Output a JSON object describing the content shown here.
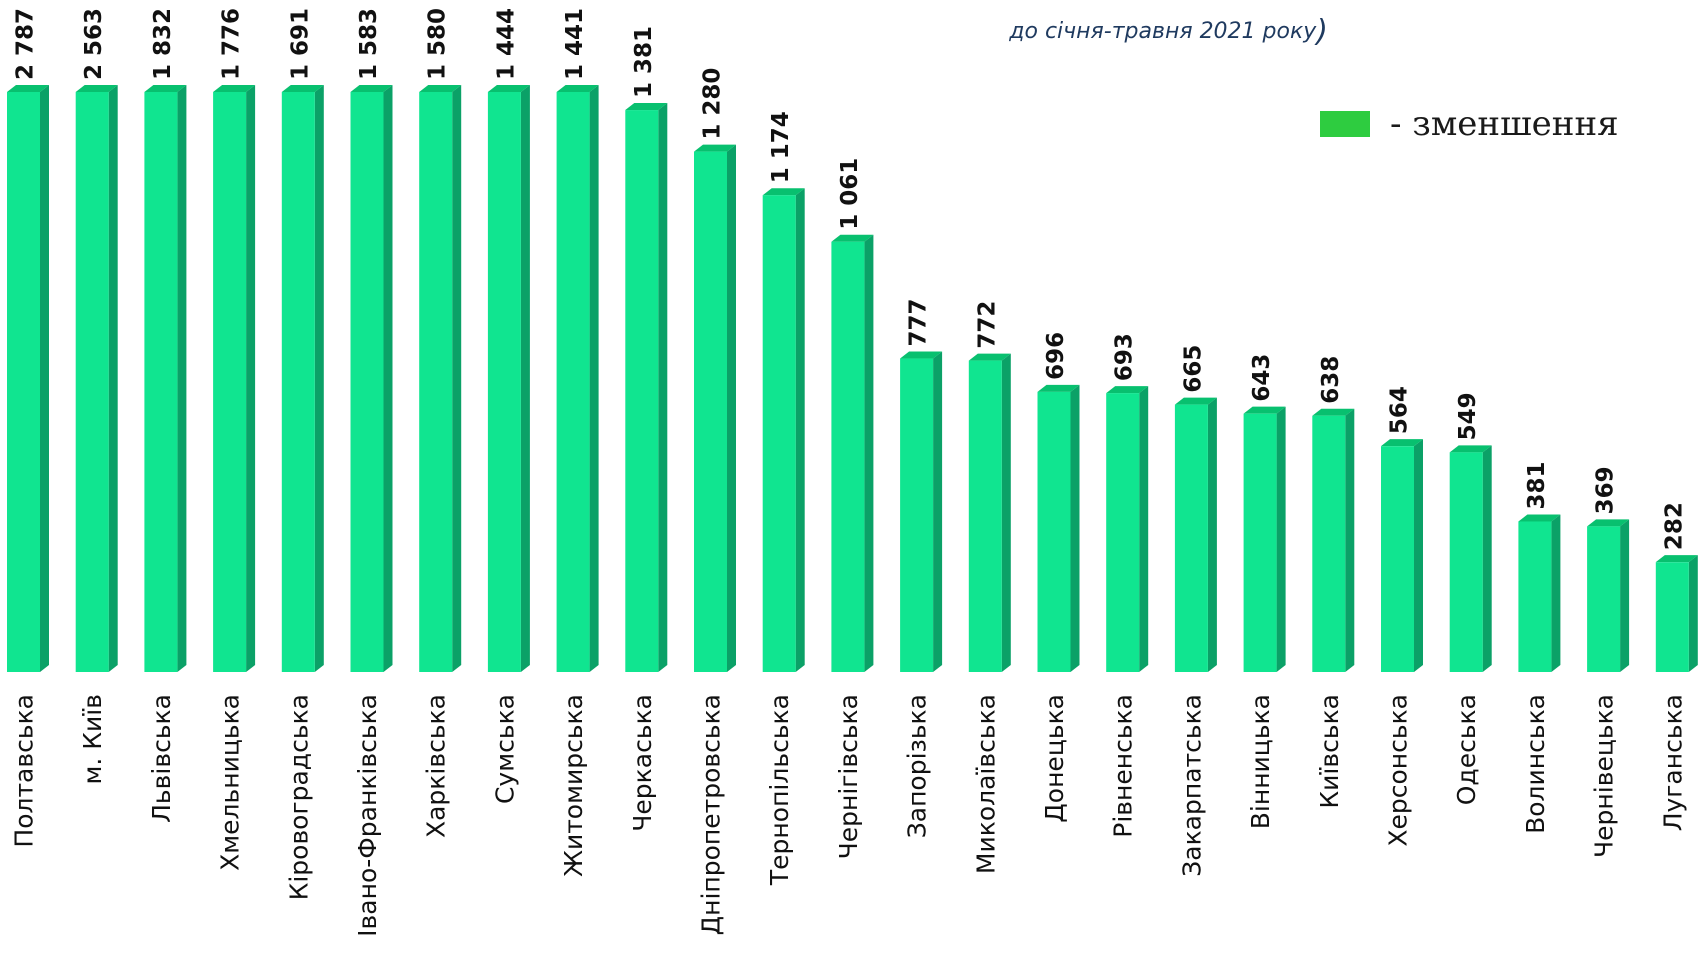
{
  "subtitle": "до січня-травня 2021 року",
  "subtitle_paren": ")",
  "legend": {
    "label": "- зменшення",
    "color": "#2ecc40"
  },
  "colors": {
    "bar_front": "#10e590",
    "bar_side": "#0ba167",
    "bar_top": "#08c06f"
  },
  "chart_data": {
    "type": "bar",
    "orientation": "vertical",
    "style": "3d-column",
    "categories": [
      "Полтавська",
      "м. Київ",
      "Львівська",
      "Хмельницька",
      "Кіровоградська",
      "Івано-Франківська",
      "Харківська",
      "Сумська",
      "Житомирська",
      "Черкаська",
      "Дніпропетровська",
      "Тернопільська",
      "Чернігівська",
      "Запорізька",
      "Миколаївська",
      "Донецька",
      "Рівненська",
      "Закарпатська",
      "Вінницька",
      "Київська",
      "Херсонська",
      "Одеська",
      "Волинська",
      "Чернівецька",
      "Луганська"
    ],
    "values": [
      2787,
      2563,
      1832,
      1776,
      1691,
      1583,
      1580,
      1444,
      1441,
      1381,
      1280,
      1174,
      1061,
      777,
      772,
      696,
      693,
      665,
      643,
      638,
      564,
      549,
      381,
      369,
      282
    ],
    "value_labels": [
      "2 787",
      "2 563",
      "1 832",
      "1 776",
      "1 691",
      "1 583",
      "1 580",
      "1 444",
      "1 441",
      "1 381",
      "1 280",
      "1 174",
      "1 061",
      "777",
      "772",
      "696",
      "693",
      "665",
      "643",
      "638",
      "564",
      "549",
      "381",
      "369",
      "282"
    ],
    "scale_break": true,
    "grid": false,
    "legend_position": "top-right"
  }
}
